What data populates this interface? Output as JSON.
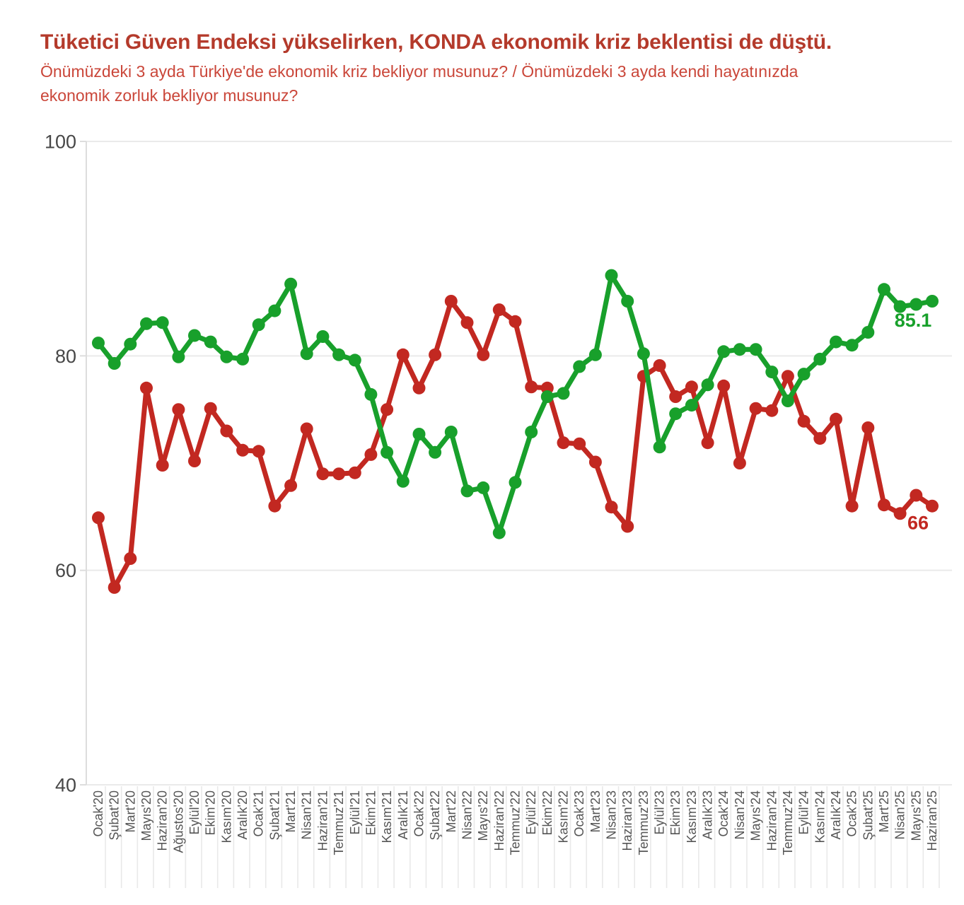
{
  "header": {
    "title": "Tüketici Güven Endeksi yükselirken, KONDA ekonomik kriz beklentisi de düştü.",
    "subtitle": "Önümüzdeki 3 ayda Türkiye'de ekonomik kriz bekliyor musunuz? / Önümüzdeki 3 ayda kendi hayatınızda ekonomik zorluk bekliyor musunuz?",
    "subtitle_lines": [
      "Önümüzdeki 3 ayda Türkiye'de ekonomik kriz bekliyor musunuz? / Önümüzdeki 3 ayda kendi hayatınızda",
      "ekonomik zorluk bekliyor musunuz?"
    ]
  },
  "colors": {
    "title_text": "#b43a2b",
    "subtitle_text": "#ca4639",
    "green_series": "#18a02b",
    "red_series": "#c22821",
    "grid_line": "#eaeaea",
    "axis_line": "#dddddd",
    "y_tick_text": "#474747",
    "x_tick_text": "#555555",
    "x_guide_line": "#e9e9e9"
  },
  "chart_data": {
    "type": "line",
    "title": "Tüketici Güven Endeksi yükselirken, KONDA ekonomik kriz beklentisi de düştü.",
    "subtitle": "Önümüzdeki 3 ayda Türkiye'de ekonomik kriz bekliyor musunuz? / Önümüzdeki 3 ayda kendi hayatınızda ekonomik zorluk bekliyor musunuz?",
    "xlabel": "",
    "ylabel": "",
    "ylim": [
      40,
      100
    ],
    "yticks": [
      40,
      60,
      80,
      100
    ],
    "grid": "horizontal",
    "legend_position": "none",
    "categories": [
      "Ocak'20",
      "Şubat'20",
      "Mart'20",
      "Mayıs'20",
      "Haziran'20",
      "Ağustos'20",
      "Eylül'20",
      "Ekim'20",
      "Kasım'20",
      "Aralık'20",
      "Ocak'21",
      "Şubat'21",
      "Mart'21",
      "Nisan'21",
      "Haziran'21",
      "Temmuz'21",
      "Eylül'21",
      "Ekim'21",
      "Kasım'21",
      "Aralık'21",
      "Ocak'22",
      "Şubat'22",
      "Mart'22",
      "Nisan'22",
      "Mayıs'22",
      "Haziran'22",
      "Temmuz'22",
      "Eylül'22",
      "Ekim'22",
      "Kasım'22",
      "Ocak'23",
      "Mart'23",
      "Nisan'23",
      "Haziran'23",
      "Temmuz'23",
      "Eylül'23",
      "Ekim'23",
      "Kasım'23",
      "Aralık'23",
      "Ocak'24",
      "Nisan'24",
      "Mayıs'24",
      "Haziran'24",
      "Temmuz'24",
      "Eylül'24",
      "Kasım'24",
      "Aralık'24",
      "Ocak'25",
      "Şubat'25",
      "Mart'25",
      "Nisan'25",
      "Mayıs'25",
      "Haziran'25"
    ],
    "series": [
      {
        "name": "KONDA ekonomik kriz beklentisi",
        "color_key": "red_series",
        "end_label": "66",
        "values": [
          64.9,
          58.4,
          61.1,
          77.0,
          69.8,
          75.0,
          70.2,
          75.1,
          73.0,
          71.2,
          71.1,
          66.0,
          67.9,
          73.2,
          69.0,
          69.0,
          69.1,
          70.8,
          75.0,
          80.1,
          77.0,
          80.1,
          85.1,
          83.1,
          80.1,
          84.3,
          83.2,
          77.1,
          77.0,
          71.9,
          71.8,
          70.1,
          65.9,
          64.1,
          78.1,
          79.1,
          76.2,
          77.1,
          71.9,
          77.2,
          70.0,
          75.1,
          74.9,
          78.1,
          73.9,
          72.3,
          74.1,
          66.0,
          73.3,
          66.1,
          65.3,
          67.0,
          66.0
        ]
      },
      {
        "name": "Tüketici Güven Endeksi",
        "color_key": "green_series",
        "end_label": "85.1",
        "values": [
          81.2,
          79.3,
          81.1,
          83.0,
          83.1,
          79.9,
          81.9,
          81.3,
          79.9,
          79.7,
          82.9,
          84.2,
          86.7,
          80.2,
          81.8,
          80.1,
          79.6,
          76.4,
          71.0,
          68.3,
          72.7,
          71.0,
          72.9,
          67.4,
          67.7,
          63.5,
          68.2,
          72.9,
          76.2,
          76.5,
          79.0,
          80.1,
          87.5,
          85.1,
          80.2,
          71.5,
          74.6,
          75.4,
          77.3,
          80.4,
          80.6,
          80.6,
          78.5,
          75.8,
          78.3,
          79.7,
          81.3,
          81.0,
          82.2,
          86.2,
          84.6,
          84.8,
          85.1
        ]
      }
    ]
  }
}
